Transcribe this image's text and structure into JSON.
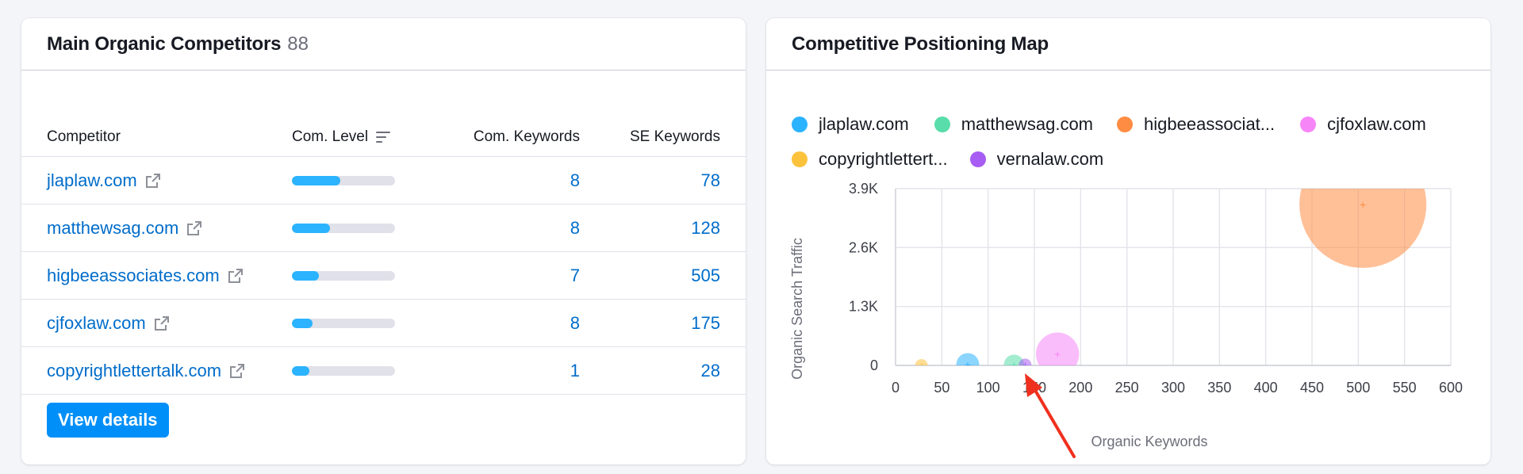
{
  "competitors_card": {
    "title": "Main Organic Competitors",
    "count": "88",
    "columns": {
      "competitor": "Competitor",
      "com_level": "Com. Level",
      "com_keywords": "Com. Keywords",
      "se_keywords": "SE Keywords"
    },
    "rows": [
      {
        "domain": "jlaplaw.com",
        "level": 0.47,
        "com_keywords": "8",
        "se_keywords": "78"
      },
      {
        "domain": "matthewsag.com",
        "level": 0.37,
        "com_keywords": "8",
        "se_keywords": "128"
      },
      {
        "domain": "higbeeassociates.com",
        "level": 0.26,
        "com_keywords": "7",
        "se_keywords": "505"
      },
      {
        "domain": "cjfoxlaw.com",
        "level": 0.2,
        "com_keywords": "8",
        "se_keywords": "175"
      },
      {
        "domain": "copyrightlettertalk.com",
        "level": 0.17,
        "com_keywords": "1",
        "se_keywords": "28"
      }
    ],
    "view_details_label": "View details"
  },
  "map_card": {
    "title": "Competitive Positioning Map",
    "legend": [
      {
        "label": "jlaplaw.com",
        "color": "#2bb3ff"
      },
      {
        "label": "matthewsag.com",
        "color": "#59ddaa"
      },
      {
        "label": "higbeeassociat...",
        "color": "#ff8c43"
      },
      {
        "label": "cjfoxlaw.com",
        "color": "#f686f8"
      },
      {
        "label": "copyrightlettert...",
        "color": "#fdc23c"
      },
      {
        "label": "vernalaw.com",
        "color": "#a75cf3"
      }
    ]
  },
  "chart_data": {
    "type": "scatter",
    "title": "",
    "xlabel": "Organic Keywords",
    "ylabel": "Organic Search Traffic",
    "xlim": [
      0,
      600
    ],
    "ylim": [
      0,
      3900
    ],
    "x_ticks": [
      "0",
      "50",
      "100",
      "150",
      "200",
      "250",
      "300",
      "350",
      "400",
      "450",
      "500",
      "550",
      "600"
    ],
    "y_ticks": [
      "0",
      "1.3K",
      "2.6K",
      "3.9K"
    ],
    "grid": true,
    "series": [
      {
        "name": "jlaplaw.com",
        "color": "#2bb3ff",
        "x": 78,
        "y": 20,
        "size": 0.18
      },
      {
        "name": "matthewsag.com",
        "color": "#59ddaa",
        "x": 128,
        "y": 15,
        "size": 0.16
      },
      {
        "name": "higbeeassociat...",
        "color": "#ff8c43",
        "x": 505,
        "y": 3550,
        "size": 1.0
      },
      {
        "name": "cjfoxlaw.com",
        "color": "#f686f8",
        "x": 175,
        "y": 250,
        "size": 0.34
      },
      {
        "name": "copyrightlettert...",
        "color": "#fdc23c",
        "x": 28,
        "y": 0,
        "size": 0.08
      },
      {
        "name": "vernalaw.com",
        "color": "#a75cf3",
        "x": 140,
        "y": 10,
        "size": 0.1
      }
    ]
  }
}
